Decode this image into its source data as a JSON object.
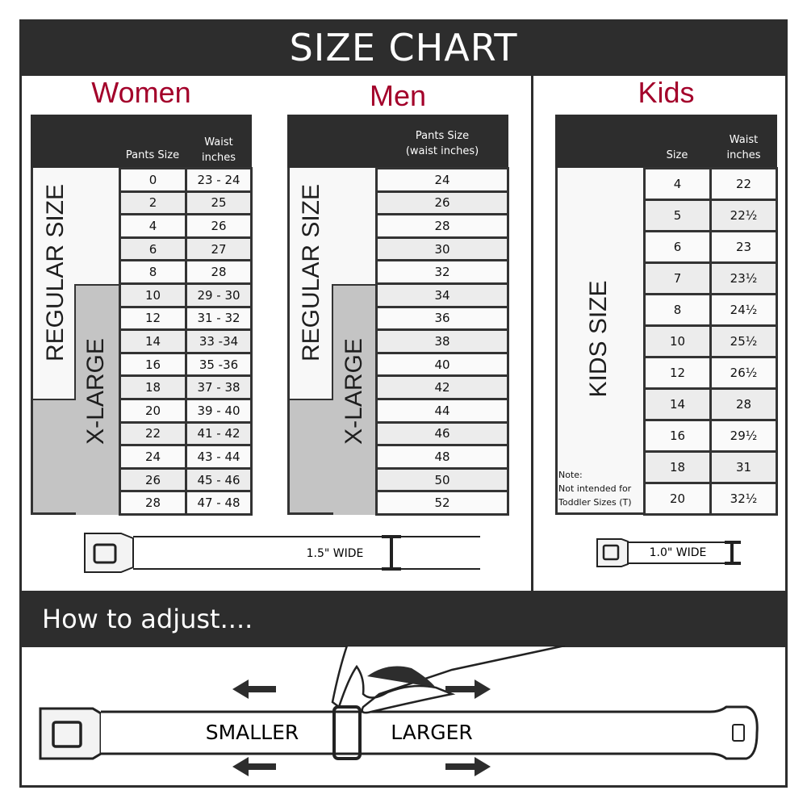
{
  "title": "SIZE CHART",
  "women": {
    "heading": "Women",
    "col1": "Pants Size",
    "col2a": "Waist",
    "col2b": "inches",
    "regular_label": "REGULAR SIZE",
    "xlarge_label": "X-LARGE",
    "rows": [
      [
        "0",
        "23 - 24"
      ],
      [
        "2",
        "25"
      ],
      [
        "4",
        "26"
      ],
      [
        "6",
        "27"
      ],
      [
        "8",
        "28"
      ],
      [
        "10",
        "29 - 30"
      ],
      [
        "12",
        "31 - 32"
      ],
      [
        "14",
        "33 -34"
      ],
      [
        "16",
        "35 -36"
      ],
      [
        "18",
        "37 - 38"
      ],
      [
        "20",
        "39 - 40"
      ],
      [
        "22",
        "41 - 42"
      ],
      [
        "24",
        "43 - 44"
      ],
      [
        "26",
        "45 - 46"
      ],
      [
        "28",
        "47 - 48"
      ]
    ]
  },
  "men": {
    "heading": "Men",
    "col1a": "Pants Size",
    "col1b": "(waist inches)",
    "regular_label": "REGULAR SIZE",
    "xlarge_label": "X-LARGE",
    "rows": [
      "24",
      "26",
      "28",
      "30",
      "32",
      "34",
      "36",
      "38",
      "40",
      "42",
      "44",
      "46",
      "48",
      "50",
      "52"
    ]
  },
  "kids": {
    "heading": "Kids",
    "col1": "Size",
    "col2a": "Waist",
    "col2b": "inches",
    "label": "KIDS SIZE",
    "note1": "Note:",
    "note2": "Not intended for",
    "note3": "Toddler Sizes (T)",
    "rows": [
      [
        "4",
        "22"
      ],
      [
        "5",
        "22½"
      ],
      [
        "6",
        "23"
      ],
      [
        "7",
        "23½"
      ],
      [
        "8",
        "24½"
      ],
      [
        "10",
        "25½"
      ],
      [
        "12",
        "26½"
      ],
      [
        "14",
        "28"
      ],
      [
        "16",
        "29½"
      ],
      [
        "18",
        "31"
      ],
      [
        "20",
        "32½"
      ]
    ]
  },
  "belt_adult": "1.5\" WIDE",
  "belt_kids": "1.0\" WIDE",
  "adjust": {
    "heading": "How to adjust....",
    "smaller": "SMALLER",
    "larger": "LARGER"
  }
}
